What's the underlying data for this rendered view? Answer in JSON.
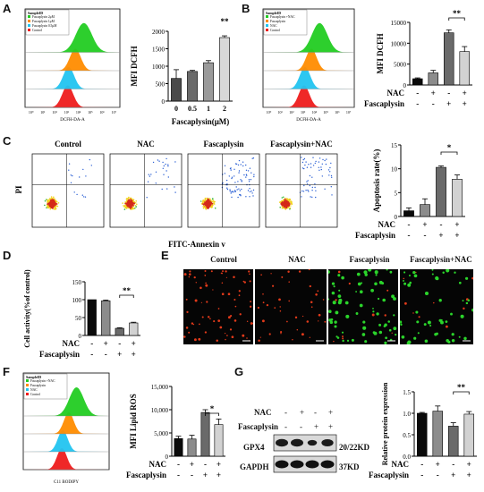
{
  "panels": {
    "A": {
      "label": "A",
      "legend_title": "SampleID",
      "legend_items": [
        {
          "label": "Fascaplysin 2μM",
          "color": "#22cc22"
        },
        {
          "label": "Fascaplysin 1μM",
          "color": "#ff8c00"
        },
        {
          "label": "Fascaplysin 0.5μM",
          "color": "#22c4f0"
        },
        {
          "label": "Control",
          "color": "#ee1c1c"
        }
      ],
      "hist_xlabel": "DCFH-DA-A",
      "hist_ticks": [
        "10⁰",
        "10¹",
        "10²",
        "10³",
        "10⁴",
        "10⁵",
        "10⁶",
        "10⁷"
      ],
      "chart_data": {
        "type": "bar",
        "categories": [
          "0",
          "0.5",
          "1",
          "2"
        ],
        "values": [
          650,
          850,
          1100,
          1820
        ],
        "errors": [
          250,
          30,
          60,
          50
        ],
        "ylabel": "MFI DCFH",
        "xlabel": "Fascaplysin(μM)",
        "ylim": [
          0,
          2000
        ],
        "yticks": [
          "0",
          "500",
          "1000",
          "1500",
          "2000"
        ],
        "significance": "**"
      }
    },
    "B": {
      "label": "B",
      "legend_title": "SampleID",
      "legend_items": [
        {
          "label": "Fascaplysin +NAC",
          "color": "#22cc22"
        },
        {
          "label": "Fascaplysin",
          "color": "#ff8c00"
        },
        {
          "label": "NAC",
          "color": "#22c4f0"
        },
        {
          "label": "Control",
          "color": "#ee1c1c"
        }
      ],
      "hist_xlabel": "DCFH-DA-A",
      "hist_ticks": [
        "10⁰",
        "10¹",
        "10²",
        "10³",
        "10⁴",
        "10⁵",
        "10⁶",
        "10⁷"
      ],
      "chart_data": {
        "type": "bar",
        "values": [
          1500,
          2900,
          12500,
          8000
        ],
        "errors": [
          200,
          600,
          700,
          1200
        ],
        "ylabel": "MFI DCFH",
        "ylim": [
          0,
          15000
        ],
        "yticks": [
          "0",
          "5000",
          "10000",
          "15000"
        ],
        "significance": "**"
      },
      "row1": {
        "label": "NAC",
        "signs": [
          "-",
          "+",
          "-",
          "+"
        ]
      },
      "row2": {
        "label": "Fascaplysin",
        "signs": [
          "-",
          "-",
          "+",
          "+"
        ]
      }
    },
    "C": {
      "label": "C",
      "plot_titles": [
        "Control",
        "NAC",
        "Fascaplysin",
        "Fascaplysin+NAC"
      ],
      "yaxis": "PI",
      "xaxis": "FITC-Annexin v",
      "chart_data": {
        "type": "bar",
        "values": [
          1.2,
          2.5,
          10.3,
          7.8
        ],
        "errors": [
          0.6,
          1.2,
          0.3,
          0.9
        ],
        "ylabel": "Apoptosis rate(%)",
        "ylim": [
          0,
          15
        ],
        "yticks": [
          "0",
          "5",
          "10",
          "15"
        ],
        "significance": "*"
      },
      "row1": {
        "label": "NAC",
        "signs": [
          "-",
          "+",
          "-",
          "+"
        ]
      },
      "row2": {
        "label": "Fascaplysin",
        "signs": [
          "-",
          "-",
          "+",
          "+"
        ]
      }
    },
    "D": {
      "label": "D",
      "chart_data": {
        "type": "bar",
        "values": [
          100,
          97,
          20,
          35
        ],
        "errors": [
          0,
          2,
          1.5,
          2
        ],
        "ylabel": "Cell activity(%of control)",
        "ylim": [
          0,
          150
        ],
        "yticks": [
          "0",
          "50",
          "100",
          "150"
        ],
        "significance": "**"
      },
      "row1": {
        "label": "NAC",
        "signs": [
          "-",
          "+",
          "-",
          "+"
        ]
      },
      "row2": {
        "label": "Fascaplysin",
        "signs": [
          "-",
          "-",
          "+",
          "+"
        ]
      }
    },
    "E": {
      "label": "E",
      "titles": [
        "Control",
        "NAC",
        "Fascaplysin",
        "Fascaplysin+NAC"
      ]
    },
    "F": {
      "label": "F",
      "legend_title": "SampleID",
      "legend_items": [
        {
          "label": "Fascaplysin +NAC",
          "color": "#22cc22"
        },
        {
          "label": "Fascaplysin",
          "color": "#ff8c00"
        },
        {
          "label": "NAC",
          "color": "#22c4f0"
        },
        {
          "label": "Control",
          "color": "#ee1c1c"
        }
      ],
      "hist_xlabel": "C11 BODIPY",
      "chart_data": {
        "type": "bar",
        "values": [
          3800,
          3700,
          9400,
          6800
        ],
        "errors": [
          500,
          800,
          600,
          1200
        ],
        "ylabel": "MFI Lipid ROS",
        "ylim": [
          0,
          15000
        ],
        "yticks": [
          "0",
          "5,000",
          "10,000",
          "15,000"
        ],
        "significance": "*"
      },
      "row1": {
        "label": "NAC",
        "signs": [
          "-",
          "+",
          "-",
          "+"
        ]
      },
      "row2": {
        "label": "Fascaplysin",
        "signs": [
          "-",
          "-",
          "+",
          "+"
        ]
      }
    },
    "G": {
      "label": "G",
      "blot_nac_label": "NAC",
      "blot_fas_label": "Fascaplysin",
      "blot_nac_signs": [
        "-",
        "+",
        "-",
        "+"
      ],
      "blot_fas_signs": [
        "-",
        "-",
        "+",
        "+"
      ],
      "band1": "GPX4",
      "band2": "GAPDH",
      "size1": "20/22KD",
      "size2": "37KD",
      "chart_data": {
        "type": "bar",
        "values": [
          1.0,
          1.05,
          0.7,
          0.98
        ],
        "errors": [
          0.02,
          0.12,
          0.08,
          0.06
        ],
        "ylabel": "Relative protein expression",
        "ylim": [
          0,
          1.5
        ],
        "yticks": [
          "0.0",
          "0.5",
          "1.0",
          "1.5"
        ],
        "significance": "**"
      },
      "row1": {
        "label": "NAC",
        "signs": [
          "-",
          "+",
          "-",
          "+"
        ]
      },
      "row2": {
        "label": "Fascaplysin",
        "signs": [
          "-",
          "-",
          "+",
          "+"
        ]
      }
    }
  },
  "colors": {
    "bar_colors": [
      "#0a0a0a",
      "#8c8c8c",
      "#6a6a6a",
      "#d2d2d2"
    ],
    "bar_colors_a": [
      "#4a4a4a",
      "#6a6a6a",
      "#9a9a9a",
      "#d8d8d8"
    ],
    "green_cells": "#2bd42b",
    "red_cells": "#e23a1a"
  }
}
